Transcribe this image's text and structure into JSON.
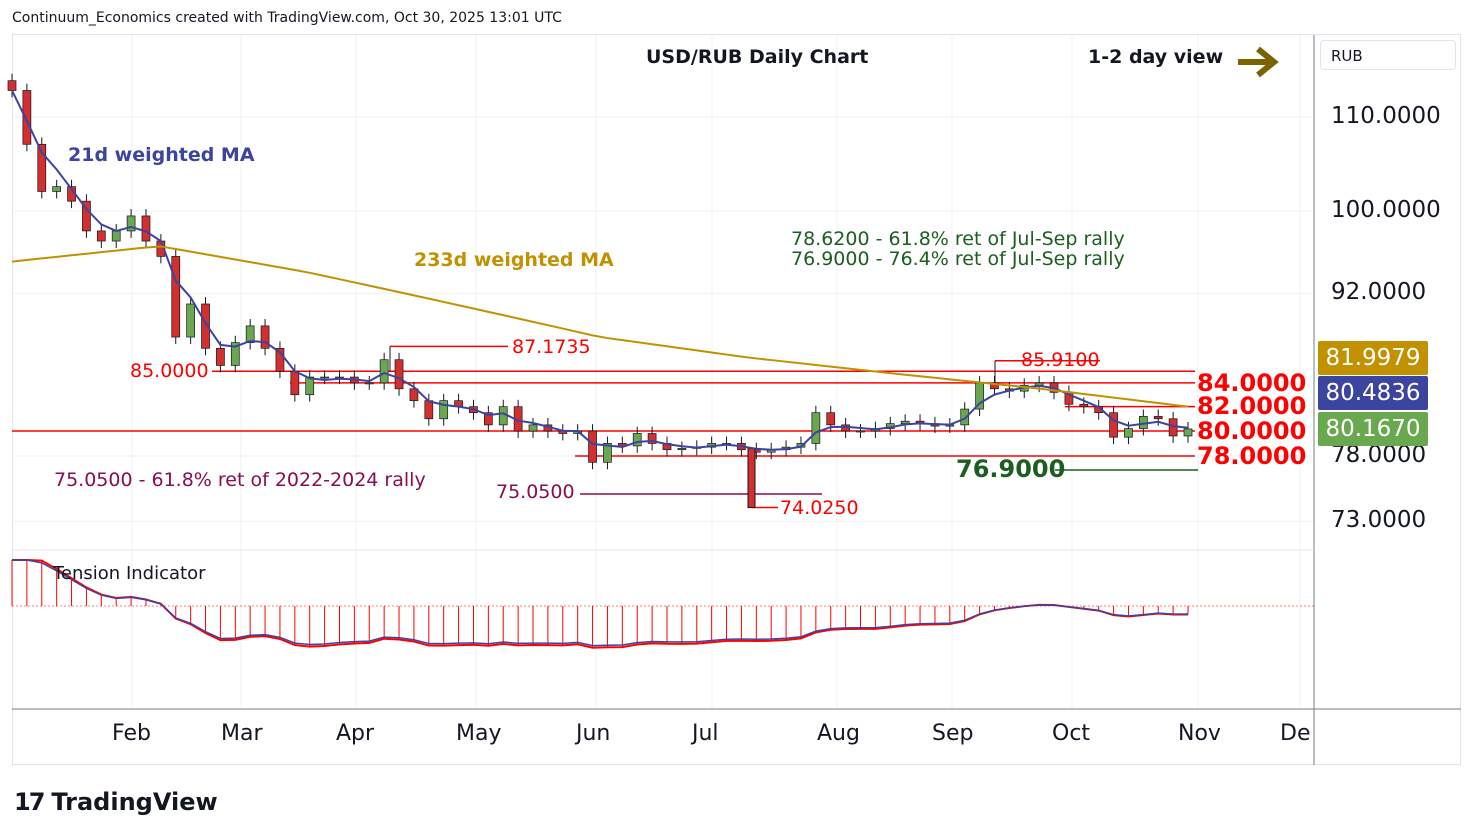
{
  "header": {
    "credit": "Continuum_Economics created with TradingView.com, Oct 30, 2025 13:01 UTC"
  },
  "currency_label": "RUB",
  "brand": "TradingView",
  "chart_data": {
    "type": "candlestick",
    "title": "USD/RUB Daily Chart",
    "view": "1-2 day view",
    "view_icon": "arrow-right-icon",
    "scale": "log",
    "y_ticks": [
      "110.0000",
      "100.0000",
      "92.0000",
      "78.0000",
      "73.0000"
    ],
    "y_tick_values": [
      110,
      100,
      92,
      78,
      73
    ],
    "x_ticks": [
      "Feb",
      "Mar",
      "Apr",
      "May",
      "Jun",
      "Jul",
      "Aug",
      "Sep",
      "Oct",
      "Nov",
      "De"
    ],
    "closes": [
      113,
      107,
      102,
      102.5,
      101,
      98,
      97,
      98,
      99.5,
      97,
      95.5,
      88,
      91,
      87,
      85.5,
      87.5,
      89,
      87,
      85,
      83,
      84.5,
      84.5,
      84.5,
      84,
      84,
      86,
      83.5,
      82.5,
      81,
      82.5,
      82,
      81.5,
      80.5,
      82,
      80,
      80.5,
      80,
      79.8,
      80,
      77.5,
      79,
      78.8,
      79.8,
      79,
      78.5,
      78.6,
      78.7,
      79,
      79,
      78.5,
      78.3,
      78.5,
      78.7,
      79,
      81.5,
      80.5,
      80,
      80,
      80.2,
      80.6,
      80.8,
      80.6,
      80.4,
      80.5,
      81.8,
      84,
      83.5,
      83.3,
      83.8,
      84,
      83.2,
      82.2,
      82,
      81.5,
      79.5,
      80.2,
      81.2,
      81,
      79.6,
      80.17
    ],
    "ma233_samples": [
      95,
      96.5,
      94,
      91,
      88,
      86.2,
      84.8,
      83.5,
      82
    ],
    "ma21_label": "21d weighted MA",
    "ma233_label": "233d weighted MA",
    "price_tags": [
      {
        "value": "81.9979",
        "color": "#c29100",
        "num": 81.9979
      },
      {
        "value": "80.4836",
        "color": "#3c44a0",
        "num": 80.4836
      },
      {
        "value": "80.1670",
        "color": "#6aa84f",
        "num": 80.167
      }
    ],
    "levels": {
      "r84": "84.0000",
      "r82": "82.0000",
      "r80": "80.0000",
      "r78": "78.0000",
      "l85": "85.0000",
      "h87": "87.1735",
      "h85_9": "85.9100",
      "l74": "74.0250",
      "l75": "75.0500",
      "g76_9": "76.9000"
    },
    "annotations": {
      "fib1": "78.6200 - 61.8% ret of Jul-Sep rally",
      "fib2": "76.9000 - 76.4% ret of Jul-Sep rally",
      "fib3": "75.0500 - 61.8% ret of 2022-2024 rally"
    },
    "indicator_label": "Tension Indicator",
    "colors": {
      "red": "#ff0000",
      "green": "#1b5e20",
      "gold": "#c29100",
      "blue": "#3c44a0",
      "purple": "#880e4f",
      "up": "#6aa84f",
      "down": "#d32f2f"
    }
  }
}
